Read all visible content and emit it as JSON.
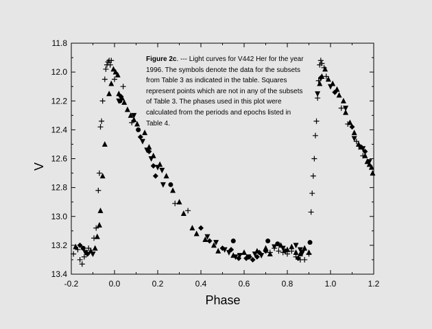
{
  "chart_data": {
    "type": "scatter",
    "title": "",
    "caption": {
      "label": "Figure 2c",
      "text": ". --- Light curves for V442 Her for the year 1996.  The symbols denote the data for the subsets from Table 3 as indicated in the table.  Squares represent points which are not in any of the subsets of Table 3.  The phases used in this plot were calculated from the periods and epochs listed in Table 4."
    },
    "xlabel": "Phase",
    "ylabel": "V",
    "xlim": [
      -0.2,
      1.2
    ],
    "ylim": [
      13.4,
      11.8
    ],
    "y_inverted": true,
    "xticks": [
      "-0.2",
      "0.0",
      "0.2",
      "0.4",
      "0.6",
      "0.8",
      "1.0",
      "1.2"
    ],
    "yticks": [
      "11.8",
      "12.0",
      "12.2",
      "12.4",
      "12.6",
      "12.8",
      "13.0",
      "13.2",
      "13.4"
    ],
    "grid": false,
    "series": [
      {
        "name": "plus",
        "marker": "plus",
        "points": [
          [
            -0.19,
            13.26
          ],
          [
            -0.17,
            13.23
          ],
          [
            -0.16,
            13.3
          ],
          [
            -0.15,
            13.33
          ],
          [
            -0.14,
            13.28
          ],
          [
            -0.13,
            13.25
          ],
          [
            -0.12,
            13.22
          ],
          [
            -0.105,
            13.25
          ],
          [
            -0.095,
            13.15
          ],
          [
            -0.085,
            13.08
          ],
          [
            -0.075,
            12.82
          ],
          [
            -0.07,
            12.7
          ],
          [
            -0.065,
            12.38
          ],
          [
            -0.06,
            12.34
          ],
          [
            -0.055,
            12.2
          ],
          [
            -0.045,
            12.05
          ],
          [
            -0.04,
            11.98
          ],
          [
            -0.035,
            11.95
          ],
          [
            -0.03,
            11.93
          ],
          [
            -0.025,
            11.92
          ],
          [
            -0.02,
            11.95
          ],
          [
            -0.015,
            11.92
          ],
          [
            0.0,
            12.05
          ],
          [
            0.04,
            12.1
          ],
          [
            0.08,
            12.35
          ],
          [
            0.28,
            12.91
          ],
          [
            0.34,
            12.96
          ],
          [
            0.72,
            13.25
          ],
          [
            0.74,
            13.22
          ],
          [
            0.76,
            13.24
          ],
          [
            0.78,
            13.25
          ],
          [
            0.8,
            13.26
          ],
          [
            0.82,
            13.24
          ],
          [
            0.84,
            13.28
          ],
          [
            0.86,
            13.3
          ],
          [
            0.88,
            13.3
          ],
          [
            0.9,
            13.26
          ],
          [
            0.91,
            12.97
          ],
          [
            0.915,
            12.84
          ],
          [
            0.92,
            12.72
          ],
          [
            0.925,
            12.6
          ],
          [
            0.93,
            12.44
          ],
          [
            0.935,
            12.34
          ],
          [
            0.94,
            12.18
          ],
          [
            0.945,
            12.06
          ],
          [
            0.95,
            11.95
          ],
          [
            0.955,
            11.92
          ],
          [
            0.96,
            11.94
          ],
          [
            0.97,
            11.97
          ],
          [
            0.98,
            12.03
          ],
          [
            1.05,
            12.25
          ],
          [
            1.08,
            12.36
          ],
          [
            1.12,
            12.48
          ],
          [
            1.15,
            12.58
          ]
        ]
      },
      {
        "name": "triangle-up",
        "marker": "triangle-up",
        "points": [
          [
            -0.18,
            13.21
          ],
          [
            -0.11,
            13.24
          ],
          [
            -0.09,
            13.22
          ],
          [
            -0.08,
            13.14
          ],
          [
            -0.07,
            13.06
          ],
          [
            -0.065,
            12.96
          ],
          [
            -0.055,
            12.72
          ],
          [
            -0.045,
            12.5
          ],
          [
            -0.025,
            12.15
          ],
          [
            -0.015,
            12.08
          ],
          [
            -0.005,
            11.98
          ],
          [
            0.005,
            12.0
          ],
          [
            0.015,
            12.02
          ],
          [
            0.02,
            12.15
          ],
          [
            0.035,
            12.18
          ],
          [
            0.045,
            12.21
          ],
          [
            0.06,
            12.26
          ],
          [
            0.075,
            12.3
          ],
          [
            0.09,
            12.33
          ],
          [
            0.105,
            12.36
          ],
          [
            0.14,
            12.42
          ],
          [
            0.16,
            12.52
          ],
          [
            0.18,
            12.58
          ],
          [
            0.21,
            12.64
          ],
          [
            0.24,
            12.72
          ],
          [
            0.27,
            12.82
          ],
          [
            0.3,
            12.9
          ],
          [
            0.32,
            12.98
          ],
          [
            0.36,
            13.08
          ],
          [
            0.38,
            13.12
          ],
          [
            0.42,
            13.16
          ],
          [
            0.46,
            13.2
          ],
          [
            0.48,
            13.24
          ],
          [
            0.55,
            13.27
          ],
          [
            0.6,
            13.25
          ],
          [
            0.66,
            13.24
          ],
          [
            0.7,
            13.22
          ],
          [
            0.72,
            13.26
          ],
          [
            0.77,
            13.2
          ],
          [
            0.8,
            13.23
          ],
          [
            0.82,
            13.21
          ],
          [
            0.84,
            13.25
          ],
          [
            0.86,
            13.26
          ],
          [
            0.88,
            13.22
          ],
          [
            0.9,
            13.25
          ],
          [
            0.95,
            12.08
          ],
          [
            0.96,
            12.03
          ],
          [
            0.975,
            11.98
          ],
          [
            0.99,
            12.05
          ],
          [
            1.01,
            12.08
          ],
          [
            1.03,
            12.12
          ],
          [
            1.04,
            12.16
          ],
          [
            1.06,
            12.2
          ],
          [
            1.07,
            12.28
          ],
          [
            1.09,
            12.35
          ],
          [
            1.11,
            12.42
          ],
          [
            1.13,
            12.5
          ],
          [
            1.14,
            12.52
          ],
          [
            1.16,
            12.58
          ],
          [
            1.17,
            12.62
          ],
          [
            1.18,
            12.64
          ],
          [
            1.19,
            12.66
          ],
          [
            1.195,
            12.7
          ]
        ]
      },
      {
        "name": "triangle-down",
        "marker": "triangle-down",
        "points": [
          [
            -0.135,
            13.25
          ],
          [
            -0.1,
            13.26
          ],
          [
            0.02,
            12.2
          ],
          [
            0.09,
            12.3
          ],
          [
            0.13,
            12.48
          ],
          [
            0.15,
            12.54
          ],
          [
            0.17,
            12.6
          ],
          [
            0.2,
            12.66
          ],
          [
            0.22,
            12.68
          ],
          [
            0.225,
            12.78
          ],
          [
            0.43,
            13.14
          ],
          [
            0.47,
            13.18
          ],
          [
            0.51,
            13.23
          ],
          [
            0.53,
            13.25
          ],
          [
            0.56,
            13.28
          ],
          [
            0.58,
            13.27
          ],
          [
            0.62,
            13.28
          ],
          [
            0.65,
            13.26
          ],
          [
            0.68,
            13.27
          ],
          [
            0.74,
            13.21
          ],
          [
            0.78,
            13.22
          ],
          [
            0.84,
            13.2
          ],
          [
            0.86,
            13.23
          ],
          [
            0.87,
            13.25
          ],
          [
            0.94,
            12.15
          ],
          [
            1.0,
            12.1
          ],
          [
            1.07,
            12.25
          ],
          [
            1.11,
            12.46
          ],
          [
            1.15,
            12.53
          ],
          [
            1.18,
            12.62
          ]
        ]
      },
      {
        "name": "diamond",
        "marker": "diamond",
        "points": [
          [
            -0.16,
            13.2
          ],
          [
            -0.125,
            13.26
          ],
          [
            0.03,
            12.17
          ],
          [
            0.12,
            12.45
          ],
          [
            0.16,
            12.55
          ],
          [
            0.18,
            12.65
          ],
          [
            0.19,
            12.72
          ],
          [
            0.4,
            13.08
          ],
          [
            0.44,
            13.17
          ],
          [
            0.5,
            13.22
          ],
          [
            0.54,
            13.23
          ],
          [
            0.575,
            13.29
          ],
          [
            0.61,
            13.29
          ],
          [
            0.625,
            13.28
          ],
          [
            0.64,
            13.3
          ],
          [
            0.66,
            13.28
          ],
          [
            0.67,
            13.25
          ],
          [
            0.7,
            13.24
          ],
          [
            0.79,
            13.24
          ],
          [
            0.85,
            13.29
          ],
          [
            0.955,
            12.04
          ],
          [
            1.02,
            12.14
          ],
          [
            1.1,
            12.38
          ],
          [
            1.16,
            12.55
          ]
        ]
      },
      {
        "name": "circle",
        "marker": "circle",
        "points": [
          [
            -0.145,
            13.22
          ],
          [
            0.025,
            12.2
          ],
          [
            0.11,
            12.4
          ],
          [
            0.26,
            12.78
          ],
          [
            0.55,
            13.17
          ],
          [
            0.71,
            13.17
          ],
          [
            0.755,
            13.19
          ],
          [
            0.905,
            13.18
          ],
          [
            1.14,
            12.52
          ]
        ]
      }
    ]
  }
}
